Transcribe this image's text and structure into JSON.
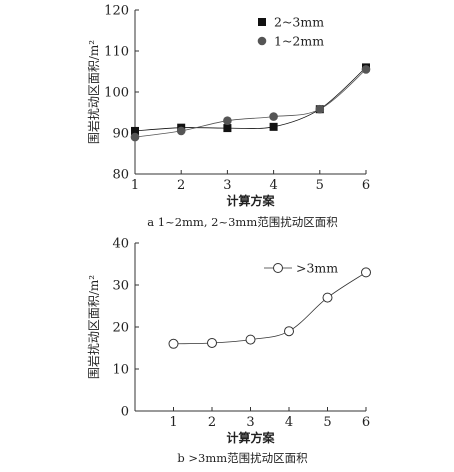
{
  "chart_data": [
    {
      "type": "line",
      "x": [
        1,
        2,
        3,
        4,
        5,
        6
      ],
      "series": [
        {
          "name": "2~3mm",
          "values": [
            90.5,
            91.3,
            91.2,
            91.5,
            95.8,
            106
          ],
          "marker": "square",
          "color": "#111111"
        },
        {
          "name": "1~2mm",
          "values": [
            89.0,
            90.5,
            93.0,
            94.0,
            95.8,
            105.5
          ],
          "marker": "circle-filled",
          "color": "#555555"
        }
      ],
      "xlabel": "计算方案",
      "ylabel": "围岩扰动区面积/m²",
      "xlim": [
        1,
        6
      ],
      "ylim": [
        80,
        120
      ],
      "yticks": [
        80,
        90,
        100,
        110,
        120
      ],
      "xticks": [
        1,
        2,
        3,
        4,
        5,
        6
      ],
      "legend_position": "top-right",
      "caption": "a 1~2mm, 2~3mm范围扰动区面积"
    },
    {
      "type": "line",
      "x": [
        1,
        2,
        3,
        4,
        5,
        6
      ],
      "series": [
        {
          "name": ">3mm",
          "values": [
            16,
            16.2,
            17,
            19,
            27,
            33
          ],
          "marker": "circle-open",
          "color": "#333333"
        }
      ],
      "xlabel": "计算方案",
      "ylabel": "围岩扰动区面积/m²",
      "xlim": [
        0,
        6
      ],
      "ylim": [
        0,
        40
      ],
      "yticks": [
        0,
        10,
        20,
        30,
        40
      ],
      "xticks": [
        1,
        2,
        3,
        4,
        5,
        6
      ],
      "legend_position": "top-right",
      "caption": "b >3mm范围扰动区面积"
    }
  ]
}
